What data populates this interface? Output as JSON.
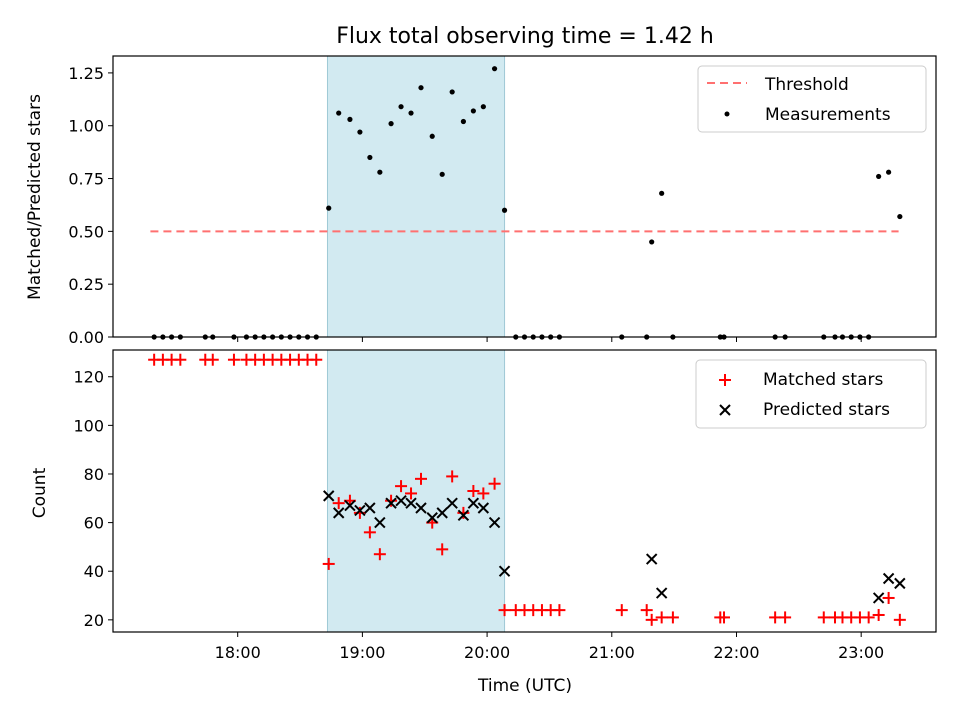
{
  "title": "Flux total observing time = 1.42 h",
  "xlabel": "Time (UTC)",
  "xticks": [
    {
      "label": "18:00",
      "t": 18.0
    },
    {
      "label": "19:00",
      "t": 19.0
    },
    {
      "label": "20:00",
      "t": 20.0
    },
    {
      "label": "21:00",
      "t": 21.0
    },
    {
      "label": "22:00",
      "t": 22.0
    },
    {
      "label": "23:00",
      "t": 23.0
    }
  ],
  "xlim": [
    17.0,
    23.6
  ],
  "shaded_region": {
    "start": 18.72,
    "end": 20.14,
    "color": "#add8e6"
  },
  "chart_data": [
    {
      "type": "scatter",
      "ylabel": "Matched/Predicted stars",
      "ylim": [
        0.0,
        1.33
      ],
      "yticks": [
        "0.00",
        "0.25",
        "0.50",
        "0.75",
        "1.00",
        "1.25"
      ],
      "legend_position": "top-right",
      "threshold": {
        "name": "Threshold",
        "value": 0.5,
        "x_range": [
          17.3,
          23.3
        ],
        "color": "#ff7070"
      },
      "series": [
        {
          "name": "Measurements",
          "color": "#000000",
          "x": [
            17.33,
            17.4,
            17.47,
            17.54,
            17.74,
            17.8,
            17.97,
            18.07,
            18.14,
            18.21,
            18.28,
            18.35,
            18.42,
            18.49,
            18.56,
            18.63,
            18.73,
            18.81,
            18.9,
            18.98,
            19.06,
            19.14,
            19.23,
            19.31,
            19.39,
            19.47,
            19.56,
            19.64,
            19.72,
            19.81,
            19.89,
            19.97,
            20.06,
            20.14,
            20.23,
            20.3,
            20.37,
            20.44,
            20.51,
            20.58,
            21.08,
            21.28,
            21.32,
            21.4,
            21.49,
            21.87,
            21.9,
            22.31,
            22.39,
            22.7,
            22.79,
            22.85,
            22.92,
            22.99,
            23.06,
            23.14,
            23.22,
            23.31
          ],
          "y": [
            0,
            0,
            0,
            0,
            0,
            0,
            0,
            0,
            0,
            0,
            0,
            0,
            0,
            0,
            0,
            0,
            0.61,
            1.06,
            1.03,
            0.97,
            0.85,
            0.78,
            1.01,
            1.09,
            1.06,
            1.18,
            0.95,
            0.77,
            1.16,
            1.02,
            1.07,
            1.09,
            1.27,
            0.6,
            0,
            0,
            0,
            0,
            0,
            0,
            0,
            0,
            0.45,
            0.68,
            0,
            0,
            0,
            0,
            0,
            0,
            0,
            0,
            0,
            0,
            0,
            0.76,
            0.78,
            0.57
          ]
        }
      ]
    },
    {
      "type": "scatter",
      "ylabel": "Count",
      "ylim": [
        15,
        131
      ],
      "yticks": [
        "20",
        "40",
        "60",
        "80",
        "100",
        "120"
      ],
      "legend_position": "top-right",
      "series": [
        {
          "name": "Matched stars",
          "marker": "plus",
          "color": "#ff0000",
          "x": [
            17.33,
            17.4,
            17.47,
            17.54,
            17.74,
            17.8,
            17.97,
            18.07,
            18.14,
            18.21,
            18.28,
            18.35,
            18.42,
            18.49,
            18.56,
            18.63,
            18.73,
            18.81,
            18.9,
            18.98,
            19.06,
            19.14,
            19.23,
            19.31,
            19.39,
            19.47,
            19.56,
            19.64,
            19.72,
            19.81,
            19.89,
            19.97,
            20.06,
            20.14,
            20.23,
            20.3,
            20.37,
            20.44,
            20.51,
            20.58,
            21.08,
            21.28,
            21.32,
            21.4,
            21.49,
            21.87,
            21.9,
            22.31,
            22.39,
            22.7,
            22.79,
            22.85,
            22.92,
            22.99,
            23.06,
            23.14,
            23.22,
            23.31
          ],
          "y": [
            127,
            127,
            127,
            127,
            127,
            127,
            127,
            127,
            127,
            127,
            127,
            127,
            127,
            127,
            127,
            127,
            43,
            68,
            69,
            64,
            56,
            47,
            69,
            75,
            72,
            78,
            60,
            49,
            79,
            64,
            73,
            72,
            76,
            24,
            24,
            24,
            24,
            24,
            24,
            24,
            24,
            24,
            20,
            21,
            21,
            21,
            21,
            21,
            21,
            21,
            21,
            21,
            21,
            21,
            21,
            22,
            29,
            20
          ]
        },
        {
          "name": "Predicted stars",
          "marker": "x",
          "color": "#000000",
          "x": [
            18.73,
            18.81,
            18.9,
            18.98,
            19.06,
            19.14,
            19.23,
            19.31,
            19.39,
            19.47,
            19.56,
            19.64,
            19.72,
            19.81,
            19.89,
            19.97,
            20.06,
            20.14,
            21.32,
            21.4,
            23.14,
            23.22,
            23.31
          ],
          "y": [
            71,
            64,
            67,
            65,
            66,
            60,
            68,
            69,
            68,
            66,
            62,
            64,
            68,
            63,
            68,
            66,
            60,
            40,
            45,
            31,
            29,
            37,
            35
          ]
        }
      ]
    }
  ]
}
